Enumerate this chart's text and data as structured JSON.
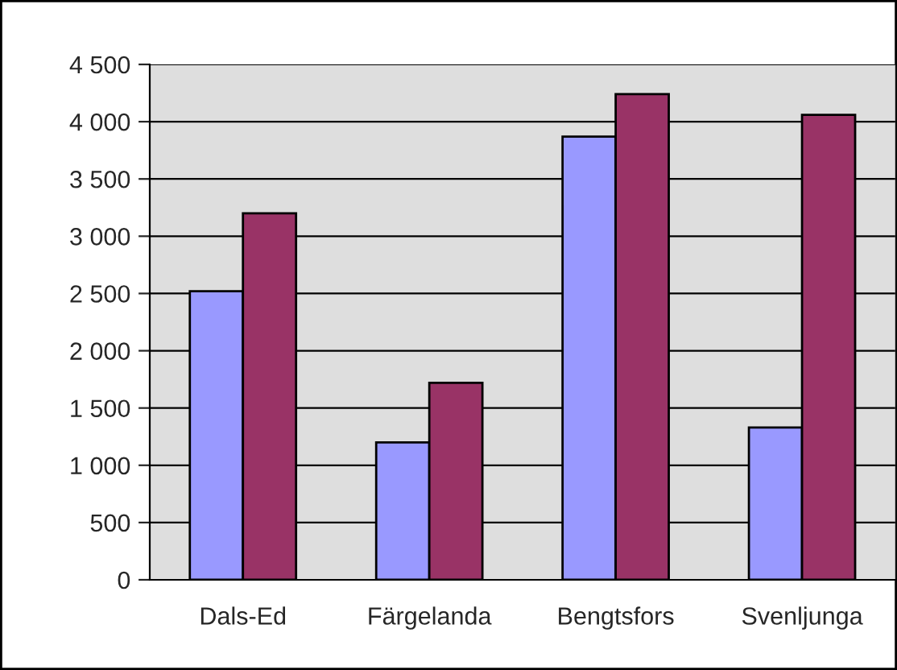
{
  "chart_data": {
    "type": "bar",
    "categories": [
      "Dals-Ed",
      "Färgelanda",
      "Bengtsfors",
      "Svenljunga"
    ],
    "series": [
      {
        "color": "#9999ff",
        "values": [
          2520,
          1200,
          3870,
          1330
        ]
      },
      {
        "color": "#993366",
        "values": [
          3200,
          1720,
          4240,
          4060
        ]
      }
    ],
    "ylim": [
      0,
      4500
    ],
    "yticks": [
      {
        "value": 0,
        "label": "0"
      },
      {
        "value": 500,
        "label": "500"
      },
      {
        "value": 1000,
        "label": "1 000"
      },
      {
        "value": 1500,
        "label": "1 500"
      },
      {
        "value": 2000,
        "label": "2 000"
      },
      {
        "value": 2500,
        "label": "2 500"
      },
      {
        "value": 3000,
        "label": "3 000"
      },
      {
        "value": 3500,
        "label": "3 500"
      },
      {
        "value": 4000,
        "label": "4 000"
      },
      {
        "value": 4500,
        "label": "4 500"
      }
    ],
    "grid": "y",
    "legend": false
  }
}
